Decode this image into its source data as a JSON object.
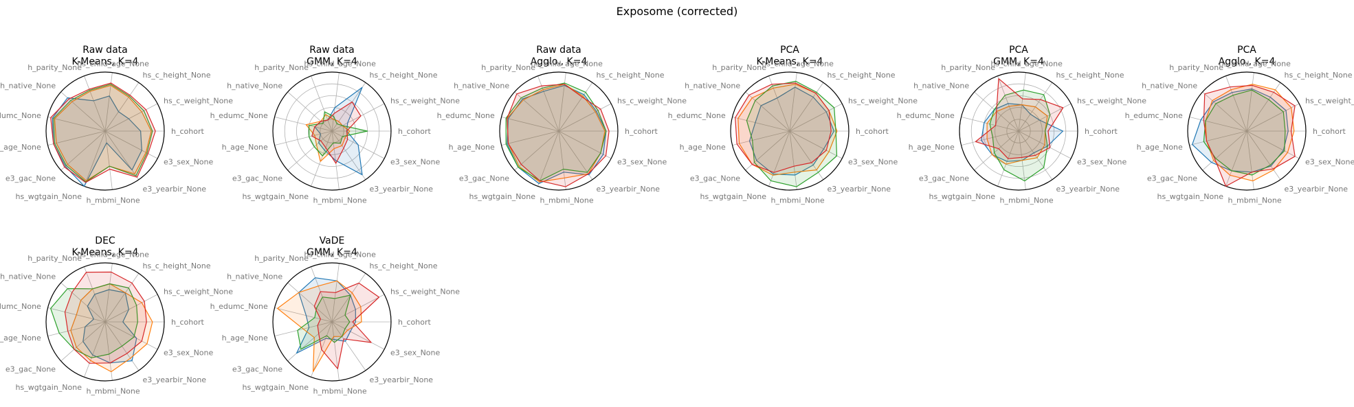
{
  "figure": {
    "title": "Exposome (corrected)"
  },
  "chart_data": {
    "type": "radar",
    "axes": [
      "h_cohort",
      "hs_c_weight_None",
      "hs_c_height_None",
      "hs_child_age_None",
      "h_parity_None",
      "h_native_None",
      "h_edumc_None",
      "h_age_None",
      "e3_gac_None",
      "hs_wgtgain_None",
      "h_mbmi_None",
      "e3_yearbir_None",
      "e3_sex_None"
    ],
    "series_colors": [
      "#1f77b4",
      "#ff7f0e",
      "#2ca02c",
      "#d62728"
    ],
    "rmax": 1.0,
    "panels": [
      {
        "title_line1": "Raw data",
        "title_line2": "K-Means, K=4",
        "grid": false,
        "outer_ring": true,
        "series": [
          [
            0.6,
            0.45,
            0.4,
            0.6,
            0.55,
            0.85,
            0.92,
            0.9,
            0.9,
            1.0,
            0.2,
            0.8,
            0.7
          ],
          [
            0.78,
            0.7,
            0.7,
            0.78,
            0.72,
            0.75,
            0.88,
            0.85,
            0.85,
            0.9,
            0.6,
            0.88,
            0.78
          ],
          [
            0.8,
            0.74,
            0.72,
            0.8,
            0.74,
            0.78,
            0.9,
            0.88,
            0.88,
            0.92,
            0.6,
            0.92,
            0.8
          ],
          [
            0.85,
            0.78,
            0.74,
            0.82,
            0.76,
            0.82,
            0.95,
            0.9,
            0.92,
            0.93,
            0.65,
            0.95,
            0.82
          ]
        ]
      },
      {
        "title_line1": "Raw data",
        "title_line2": "GMM, K=4",
        "grid": true,
        "outer_ring": false,
        "series": [
          [
            0.25,
            0.3,
            0.9,
            0.4,
            0.2,
            0.25,
            0.3,
            0.2,
            0.3,
            0.35,
            0.5,
            0.9,
            0.5
          ],
          [
            0.3,
            0.2,
            0.2,
            0.2,
            0.3,
            0.25,
            0.45,
            0.3,
            0.35,
            0.55,
            0.3,
            0.3,
            0.25
          ],
          [
            0.6,
            0.2,
            0.15,
            0.25,
            0.35,
            0.2,
            0.4,
            0.4,
            0.4,
            0.45,
            0.2,
            0.25,
            0.2
          ],
          [
            0.25,
            0.55,
            0.6,
            0.3,
            0.2,
            0.25,
            0.3,
            0.35,
            0.25,
            0.3,
            0.55,
            0.35,
            0.3
          ]
        ]
      },
      {
        "title_line1": "Raw data",
        "title_line2": "Agglo., K=4",
        "grid": false,
        "outer_ring": true,
        "series": [
          [
            0.8,
            0.72,
            0.75,
            0.78,
            0.72,
            0.82,
            0.88,
            0.9,
            0.92,
            0.95,
            0.7,
            0.9,
            0.85
          ],
          [
            0.78,
            0.7,
            0.72,
            0.8,
            0.75,
            0.8,
            0.9,
            0.88,
            0.9,
            0.92,
            0.8,
            0.88,
            0.8
          ],
          [
            0.8,
            0.75,
            0.8,
            0.82,
            0.78,
            0.85,
            0.92,
            0.92,
            0.92,
            0.9,
            0.65,
            0.85,
            0.8
          ],
          [
            0.85,
            0.8,
            0.7,
            0.8,
            0.82,
            0.95,
            0.9,
            0.88,
            0.85,
            0.9,
            0.95,
            0.88,
            0.9
          ]
        ]
      },
      {
        "title_line1": "PCA",
        "title_line2": "K-Means, K=4",
        "grid": false,
        "outer_ring": true,
        "series": [
          [
            0.75,
            0.7,
            0.7,
            0.75,
            0.6,
            0.65,
            0.6,
            0.7,
            0.75,
            0.78,
            0.75,
            0.7,
            0.65
          ],
          [
            0.8,
            0.75,
            0.78,
            0.8,
            0.78,
            0.85,
            0.9,
            0.88,
            0.85,
            0.8,
            0.7,
            0.8,
            0.75
          ],
          [
            0.78,
            0.85,
            0.8,
            0.85,
            0.82,
            0.78,
            0.75,
            0.65,
            0.8,
            0.9,
            0.95,
            0.85,
            0.9
          ],
          [
            0.7,
            0.75,
            0.78,
            0.82,
            0.85,
            0.92,
            0.95,
            0.92,
            0.85,
            0.75,
            0.6,
            0.65,
            0.7
          ]
        ]
      },
      {
        "title_line1": "PCA",
        "title_line2": "GMM, K=4",
        "grid": true,
        "outer_ring": true,
        "series": [
          [
            0.75,
            0.4,
            0.35,
            0.45,
            0.5,
            0.55,
            0.6,
            0.65,
            0.6,
            0.55,
            0.5,
            0.45,
            0.55
          ],
          [
            0.45,
            0.55,
            0.5,
            0.45,
            0.45,
            0.5,
            0.55,
            0.55,
            0.6,
            0.6,
            0.5,
            0.55,
            0.5
          ],
          [
            0.45,
            0.6,
            0.75,
            0.7,
            0.65,
            0.55,
            0.5,
            0.45,
            0.55,
            0.7,
            0.85,
            0.75,
            0.55
          ],
          [
            0.5,
            0.85,
            0.65,
            0.55,
            0.95,
            0.5,
            0.4,
            0.75,
            0.45,
            0.5,
            0.45,
            0.5,
            0.6
          ]
        ]
      },
      {
        "title_line1": "PCA",
        "title_line2": "Agglo., K=4",
        "grid": false,
        "outer_ring": true,
        "series": [
          [
            0.7,
            0.75,
            0.7,
            0.72,
            0.7,
            0.75,
            0.8,
            0.95,
            0.8,
            0.72,
            0.7,
            0.72,
            0.7
          ],
          [
            0.8,
            0.85,
            0.85,
            0.8,
            0.75,
            0.78,
            0.72,
            0.7,
            0.75,
            0.8,
            0.85,
            0.8,
            0.78
          ],
          [
            0.65,
            0.7,
            0.65,
            0.7,
            0.65,
            0.7,
            0.72,
            0.75,
            0.7,
            0.72,
            0.75,
            0.7,
            0.72
          ],
          [
            0.75,
            0.92,
            0.8,
            0.78,
            0.8,
            0.95,
            0.75,
            0.7,
            0.72,
            1.0,
            0.7,
            0.78,
            0.92
          ]
        ]
      },
      {
        "title_line1": "DEC",
        "title_line2": "K-Means, K=4",
        "grid": false,
        "outer_ring": true,
        "series": [
          [
            0.3,
            0.45,
            0.6,
            0.55,
            0.5,
            0.4,
            0.2,
            0.35,
            0.5,
            0.6,
            0.7,
            0.8,
            0.6
          ],
          [
            0.8,
            0.7,
            0.6,
            0.65,
            0.6,
            0.55,
            0.5,
            0.6,
            0.65,
            0.7,
            0.85,
            0.75,
            0.8
          ],
          [
            0.55,
            0.6,
            0.7,
            0.65,
            0.6,
            0.85,
            0.95,
            0.8,
            0.7,
            0.65,
            0.55,
            0.5,
            0.55
          ],
          [
            0.7,
            0.75,
            0.8,
            0.85,
            0.9,
            0.75,
            0.7,
            0.65,
            0.7,
            0.75,
            0.7,
            0.65,
            0.7
          ]
        ]
      },
      {
        "title_line1": "VaDE",
        "title_line2": "GMM, K=4",
        "grid": false,
        "outer_ring": true,
        "series": [
          [
            0.4,
            0.45,
            0.55,
            0.7,
            0.8,
            0.75,
            0.45,
            0.4,
            0.8,
            0.3,
            0.3,
            0.4,
            0.35
          ],
          [
            0.5,
            0.55,
            0.6,
            0.7,
            0.65,
            0.75,
            0.95,
            0.5,
            0.4,
            0.9,
            0.25,
            0.3,
            0.3
          ],
          [
            0.3,
            0.25,
            0.55,
            0.4,
            0.45,
            0.35,
            0.3,
            0.6,
            0.7,
            0.25,
            0.35,
            0.3,
            0.25
          ],
          [
            0.35,
            0.9,
            0.8,
            0.5,
            0.55,
            0.4,
            0.2,
            0.25,
            0.3,
            0.5,
            0.8,
            0.35,
            0.75
          ]
        ]
      }
    ]
  }
}
